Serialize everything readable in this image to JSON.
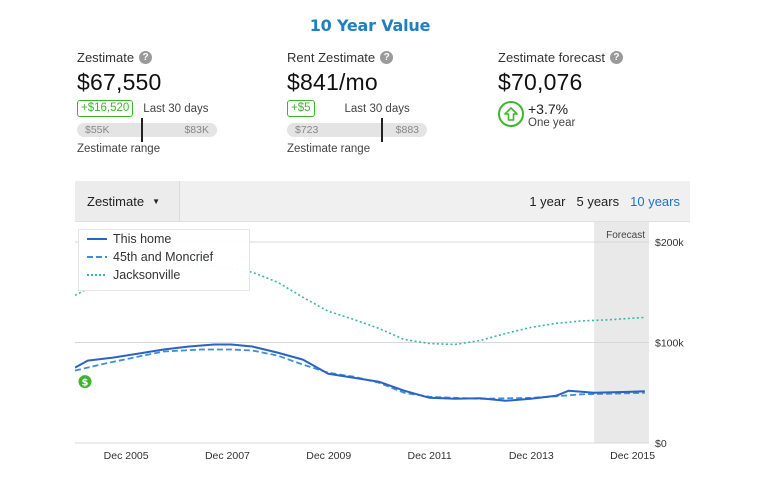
{
  "page": {
    "title": "10 Year Value"
  },
  "zestimate": {
    "label": "Zestimate",
    "value": "$67,550",
    "change": "+$16,520",
    "change_period": "Last 30 days",
    "range_low": "$55K",
    "range_high": "$83K",
    "range_caption": "Zestimate range"
  },
  "rent": {
    "label": "Rent Zestimate",
    "value": "$841/mo",
    "change": "+$5",
    "change_period": "Last 30 days",
    "range_low": "$723",
    "range_high": "$883",
    "range_caption": "Zestimate range"
  },
  "forecast": {
    "label": "Zestimate forecast",
    "value": "$70,076",
    "pct": "+3.7%",
    "period": "One year"
  },
  "toolbar": {
    "dropdown_label": "Zestimate",
    "ranges": [
      "1 year",
      "5 years",
      "10 years"
    ],
    "active_range": "10 years"
  },
  "colors": {
    "accent": "#1a73c8",
    "green": "#3fb52f",
    "home": "#2a64c0",
    "neighborhood": "#3d8fd9",
    "city": "#37b8a5"
  },
  "chart_data": {
    "type": "line",
    "x_tick_labels": [
      "Dec 2005",
      "Dec 2007",
      "Dec 2009",
      "Dec 2011",
      "Dec 2013",
      "Dec 2015"
    ],
    "y_tick_labels": [
      "$200k",
      "$100k",
      "$0"
    ],
    "ylim": [
      0,
      200000
    ],
    "forecast_label": "Forecast",
    "forecast_start": "2015-03",
    "series": [
      {
        "name": "This home",
        "style": "solid",
        "points": [
          [
            "2004-12",
            75000
          ],
          [
            "2005-03",
            82000
          ],
          [
            "2005-09",
            85000
          ],
          [
            "2006-03",
            89000
          ],
          [
            "2006-09",
            93000
          ],
          [
            "2007-03",
            96000
          ],
          [
            "2007-09",
            98000
          ],
          [
            "2008-01",
            98000
          ],
          [
            "2008-06",
            96000
          ],
          [
            "2008-12",
            90000
          ],
          [
            "2009-06",
            83000
          ],
          [
            "2009-12",
            69000
          ],
          [
            "2010-06",
            65000
          ],
          [
            "2010-12",
            61000
          ],
          [
            "2011-06",
            52000
          ],
          [
            "2011-12",
            45000
          ],
          [
            "2012-06",
            44000
          ],
          [
            "2012-12",
            44500
          ],
          [
            "2013-06",
            42000
          ],
          [
            "2013-12",
            44000
          ],
          [
            "2014-06",
            47000
          ],
          [
            "2014-09",
            52000
          ],
          [
            "2015-03",
            50000
          ],
          [
            "2015-12",
            51000
          ],
          [
            "2016-03",
            51500
          ]
        ]
      },
      {
        "name": "45th and Moncrief",
        "style": "dashed",
        "points": [
          [
            "2004-12",
            72000
          ],
          [
            "2005-06",
            78000
          ],
          [
            "2006-03",
            86000
          ],
          [
            "2006-09",
            91000
          ],
          [
            "2007-06",
            93000
          ],
          [
            "2008-01",
            93000
          ],
          [
            "2008-06",
            92000
          ],
          [
            "2008-12",
            87000
          ],
          [
            "2009-06",
            78000
          ],
          [
            "2009-12",
            70000
          ],
          [
            "2010-06",
            66000
          ],
          [
            "2010-12",
            60000
          ],
          [
            "2011-06",
            50000
          ],
          [
            "2011-12",
            46000
          ],
          [
            "2012-06",
            45000
          ],
          [
            "2012-12",
            44000
          ],
          [
            "2013-06",
            44500
          ],
          [
            "2013-12",
            45000
          ],
          [
            "2014-06",
            46500
          ],
          [
            "2014-12",
            48500
          ],
          [
            "2015-06",
            49000
          ],
          [
            "2016-03",
            50000
          ]
        ]
      },
      {
        "name": "Jacksonville",
        "style": "dotted",
        "points": [
          [
            "2004-12",
            147000
          ],
          [
            "2005-06",
            160000
          ],
          [
            "2006-06",
            172000
          ],
          [
            "2007-03",
            177000
          ],
          [
            "2007-09",
            176000
          ],
          [
            "2008-06",
            170000
          ],
          [
            "2008-12",
            160000
          ],
          [
            "2009-06",
            145000
          ],
          [
            "2009-12",
            131000
          ],
          [
            "2010-06",
            123000
          ],
          [
            "2010-12",
            114000
          ],
          [
            "2011-06",
            103000
          ],
          [
            "2011-12",
            99000
          ],
          [
            "2012-06",
            98000
          ],
          [
            "2012-12",
            102000
          ],
          [
            "2013-06",
            109000
          ],
          [
            "2013-12",
            115000
          ],
          [
            "2014-06",
            119000
          ],
          [
            "2014-12",
            121500
          ],
          [
            "2015-06",
            122500
          ],
          [
            "2016-03",
            125000
          ]
        ]
      }
    ]
  }
}
